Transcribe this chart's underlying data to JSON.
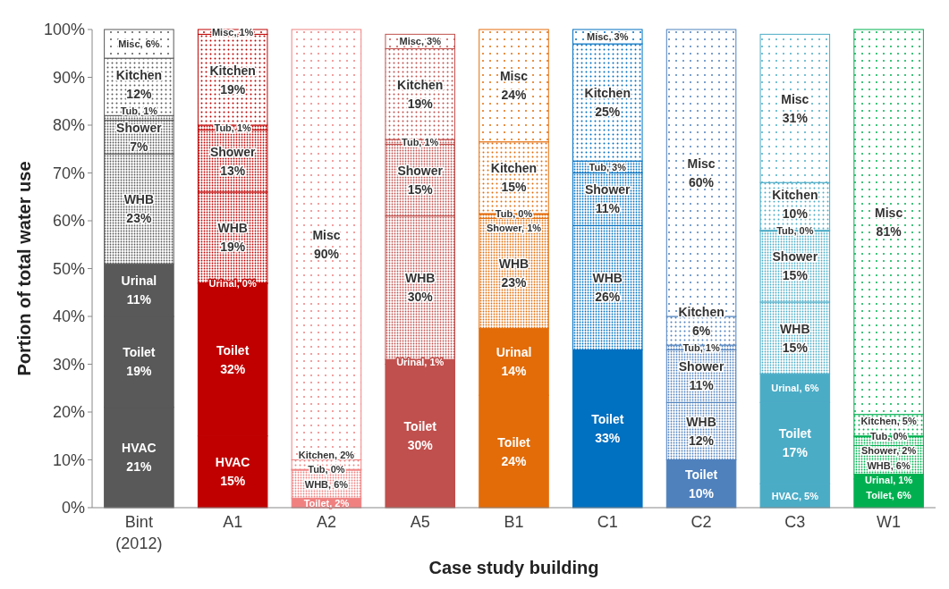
{
  "chart_data": {
    "type": "bar",
    "stacked": true,
    "xlabel": "Case study building",
    "ylabel": "Portion of total water use",
    "categories": [
      "Bint\n(2012)",
      "A1",
      "A2",
      "A5",
      "B1",
      "C1",
      "C2",
      "C3",
      "W1"
    ],
    "ylim": [
      0,
      100
    ],
    "yticks": [
      {
        "value": 0,
        "label": "0%"
      },
      {
        "value": 10,
        "label": "10%"
      },
      {
        "value": 20,
        "label": "20%"
      },
      {
        "value": 30,
        "label": "30%"
      },
      {
        "value": 40,
        "label": "40%"
      },
      {
        "value": 50,
        "label": "50%"
      },
      {
        "value": 60,
        "label": "60%"
      },
      {
        "value": 70,
        "label": "70%"
      },
      {
        "value": 80,
        "label": "80%"
      },
      {
        "value": 90,
        "label": "90%"
      },
      {
        "value": 100,
        "label": "100%"
      }
    ],
    "series": [
      {
        "colors": [
          "#595959",
          "#c00000",
          "#f08080",
          "#c0504d",
          "#e36c09",
          "#0070c0",
          "#4f81bd",
          "#4bacc6",
          "#00b050"
        ],
        "values": [
          21,
          15,
          null,
          null,
          null,
          null,
          null,
          5,
          null
        ],
        "value_labels": [
          "HVAC\n21%",
          "HVAC\n15%",
          null,
          null,
          null,
          null,
          null,
          "HVAC, 5%",
          null
        ]
      },
      {
        "colors": [
          "#595959",
          "#c00000",
          "#f08080",
          "#c0504d",
          "#e36c09",
          "#0070c0",
          "#4f81bd",
          "#4bacc6",
          "#00b050"
        ],
        "values": [
          19,
          32,
          2,
          30,
          23.5,
          33,
          10,
          17,
          6
        ],
        "value_labels": [
          "Toilet\n19%",
          "Toilet\n32%",
          "Toilet, 2%",
          "Toilet\n30%",
          "Toilet\n24%",
          "Toilet\n33%",
          "Toilet\n10%",
          "Toilet\n17%",
          "Toilet, 6%"
        ]
      },
      {
        "colors": [
          "#595959",
          "#c00000",
          "#f08080",
          "#c0504d",
          "#e36c09",
          "#0070c0",
          "#4f81bd",
          "#4bacc6",
          "#00b050"
        ],
        "values": [
          11,
          0,
          null,
          1,
          14,
          null,
          null,
          6,
          1
        ],
        "value_labels": [
          "Urinal\n11%",
          "Urinal, 0%",
          null,
          "Urinal, 1%",
          "Urinal\n14%",
          null,
          null,
          "Urinal, 6%",
          "Urinal, 1%"
        ]
      },
      {
        "colors": [
          "#595959",
          "#c00000",
          "#f08080",
          "#c0504d",
          "#e36c09",
          "#0070c0",
          "#4f81bd",
          "#4bacc6",
          "#00b050"
        ],
        "values": [
          23,
          19,
          6,
          30,
          23,
          26,
          12,
          15,
          6
        ],
        "value_labels": [
          "WHB\n23%",
          "WHB\n19%",
          "WHB, 6%",
          "WHB\n30%",
          "WHB\n23%",
          "WHB\n26%",
          "WHB\n12%",
          "WHB\n15%",
          "WHB, 6%"
        ]
      },
      {
        "colors": [
          "#595959",
          "#c00000",
          "#f08080",
          "#c0504d",
          "#e36c09",
          "#0070c0",
          "#4f81bd",
          "#4bacc6",
          "#00b050"
        ],
        "values": [
          7,
          13,
          null,
          15,
          1,
          11,
          11,
          15,
          2
        ],
        "value_labels": [
          "Shower\n7%",
          "Shower\n13%",
          null,
          "Shower\n15%",
          "Shower, 1%",
          "Shower\n11%",
          "Shower\n11%",
          "Shower\n15%",
          "Shower, 2%"
        ]
      },
      {
        "colors": [
          "#595959",
          "#c00000",
          "#f08080",
          "#c0504d",
          "#e36c09",
          "#0070c0",
          "#4f81bd",
          "#4bacc6",
          "#00b050"
        ],
        "values": [
          1,
          1,
          0,
          1,
          0,
          2.5,
          1,
          0,
          0
        ],
        "value_labels": [
          "Tub, 1%",
          "Tub, 1%",
          "Tub, 0%",
          "Tub, 1%",
          "Tub, 0%",
          "Tub, 3%",
          "Tub, 1%",
          "Tub, 0%",
          "Tub, 0%"
        ]
      },
      {
        "colors": [
          "#595959",
          "#c00000",
          "#f08080",
          "#c0504d",
          "#e36c09",
          "#0070c0",
          "#4f81bd",
          "#4bacc6",
          "#00b050"
        ],
        "values": [
          12,
          19,
          2,
          19,
          15,
          24.5,
          6,
          10,
          4.5
        ],
        "value_labels": [
          "Kitchen\n12%",
          "Kitchen\n19%",
          "Kitchen, 2%",
          "Kitchen\n19%",
          "Kitchen\n15%",
          "Kitchen\n25%",
          "Kitchen\n6%",
          "Kitchen\n10%",
          "Kitchen, 5%"
        ]
      },
      {
        "colors": [
          "#595959",
          "#c00000",
          "#f08080",
          "#c0504d",
          "#e36c09",
          "#0070c0",
          "#4f81bd",
          "#4bacc6",
          "#00b050"
        ],
        "values": [
          6,
          1,
          90,
          3,
          23.5,
          3,
          60,
          31,
          80.5
        ],
        "value_labels": [
          "Misc, 6%",
          "Misc, 1%",
          "Misc\n90%",
          "Misc, 3%",
          "Misc\n24%",
          "Misc, 3%",
          "Misc\n60%",
          "Misc\n31%",
          "Misc\n81%"
        ]
      }
    ]
  }
}
